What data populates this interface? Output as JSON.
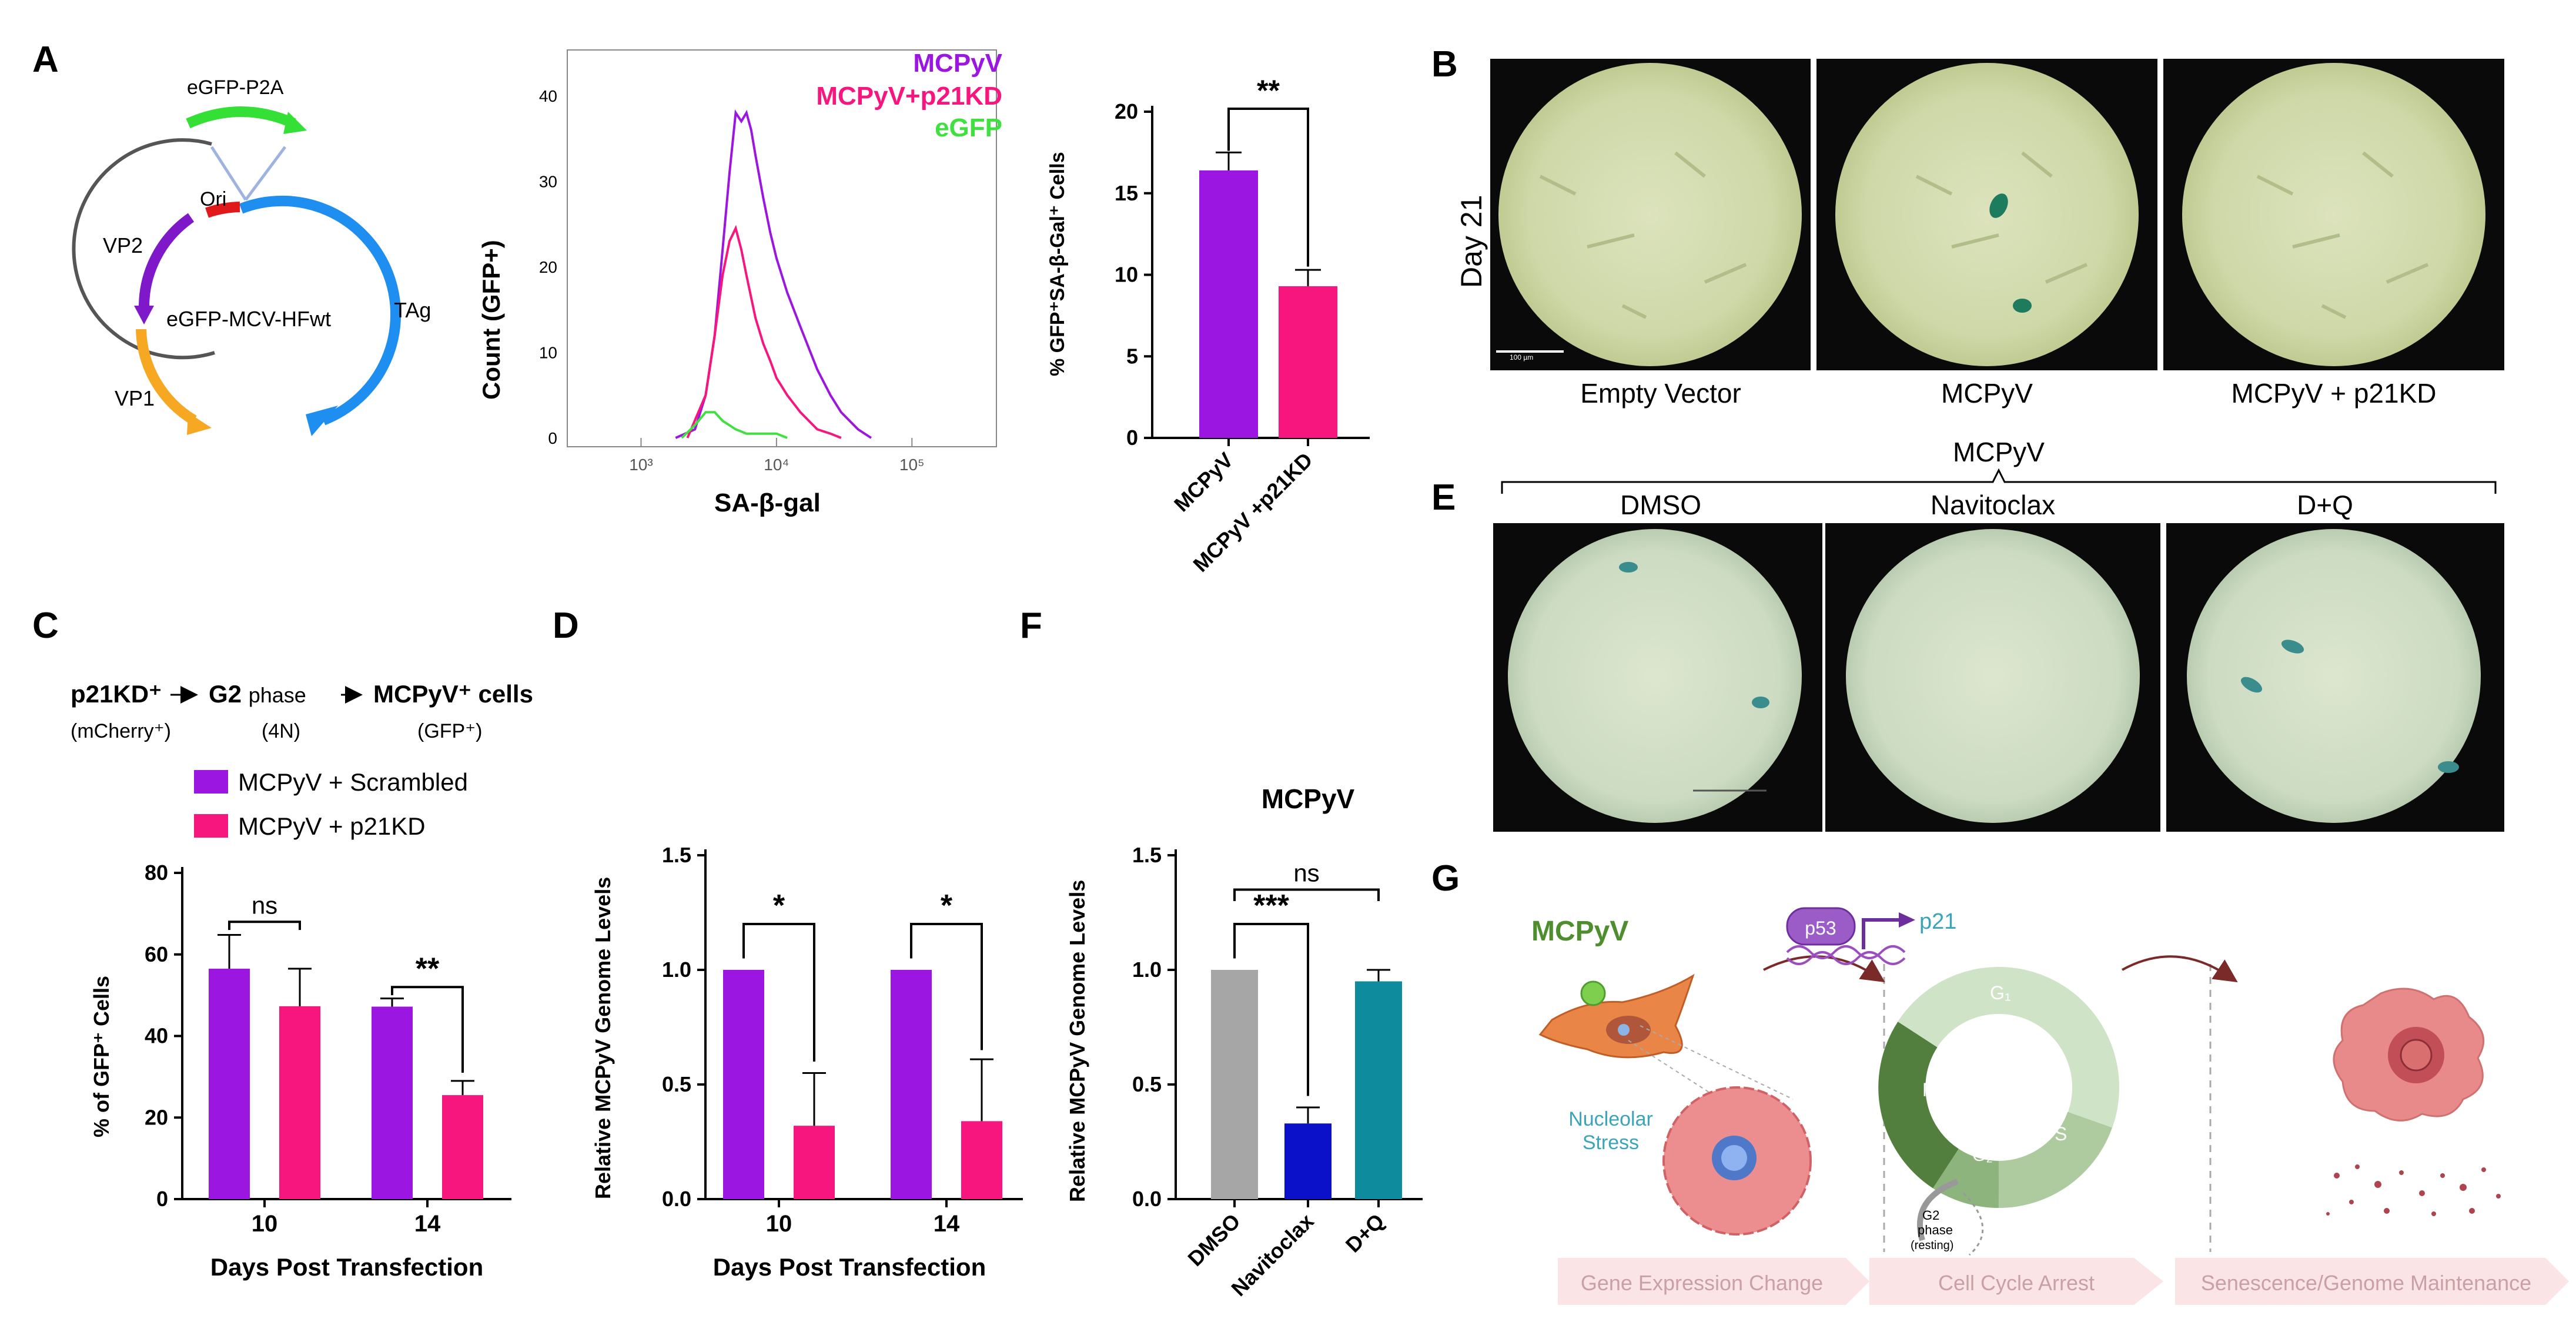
{
  "colors": {
    "purple": "#9B16E0",
    "pink": "#F7157E",
    "green": "#3FE03F",
    "gray": "#A6A6A6",
    "navy": "#0B10C9",
    "teal": "#0E8B9C",
    "plasmid_blue": "#1E8EF0",
    "plasmid_orange": "#F7A823",
    "plasmid_purple": "#7E18C9",
    "plasmid_red": "#E01A1A",
    "plasmid_green": "#34E035",
    "mcpyv_green": "#4E8E2E",
    "micro_bg": "#0A0A0A",
    "micro_field": "#D6DDB4"
  },
  "panel_letters": [
    "A",
    "B",
    "C",
    "D",
    "E",
    "F",
    "G"
  ],
  "plasmid": {
    "insert": "eGFP-P2A",
    "center": "eGFP-MCV-HFwt",
    "ori": "Ori",
    "vp2": "VP2",
    "vp1": "VP1",
    "tag": "TAg"
  },
  "histogram": {
    "chart_data": {
      "type": "line",
      "title": "",
      "xlabel": "SA-β-gal",
      "ylabel": "Count (GFP+)",
      "xscale": "log",
      "xlim": [
        300,
        400000
      ],
      "ylim": [
        0,
        45
      ],
      "xticks": [
        "10³",
        "10⁴",
        "10⁵"
      ],
      "yticks": [
        0,
        10,
        20,
        30,
        40
      ],
      "series": [
        {
          "name": "MCPyV",
          "color": "#9B16E0",
          "x": [
            1800,
            2500,
            3000,
            3500,
            4000,
            4500,
            5000,
            5500,
            6000,
            6500,
            7000,
            8000,
            9000,
            10000,
            12000,
            15000,
            20000,
            25000,
            30000,
            40000,
            50000
          ],
          "y": [
            0,
            1,
            5,
            12,
            22,
            31,
            38,
            37,
            38,
            36,
            33,
            28,
            24,
            21,
            17,
            13,
            8,
            5,
            3,
            1,
            0
          ]
        },
        {
          "name": "MCPyV+p21KD",
          "color": "#F7157E",
          "x": [
            2200,
            3000,
            3500,
            4000,
            4500,
            5000,
            5500,
            6000,
            7000,
            8000,
            9000,
            10000,
            12000,
            15000,
            20000,
            25000,
            30000
          ],
          "y": [
            0,
            5,
            12,
            19,
            23,
            24.5,
            22,
            19,
            14,
            11,
            9,
            7,
            5,
            3,
            1,
            0.5,
            0
          ]
        },
        {
          "name": "eGFP",
          "color": "#3FE03F",
          "x": [
            2000,
            2500,
            3000,
            3500,
            4000,
            5000,
            6000,
            8000,
            10000,
            12000
          ],
          "y": [
            0,
            1.5,
            3,
            3,
            2,
            1,
            0.5,
            0.5,
            0.5,
            0
          ]
        }
      ]
    }
  },
  "bar_a": {
    "chart_data": {
      "type": "bar",
      "categories": [
        "MCPyV",
        "MCPyV +p21KD"
      ],
      "values": [
        16.4,
        9.3
      ],
      "errors": [
        1.1,
        1.0
      ],
      "colors": [
        "#9B16E0",
        "#F7157E"
      ],
      "ylabel": "% GFP⁺SA-β-Gal⁺ Cells",
      "ylim": [
        0,
        20
      ],
      "yticks": [
        0,
        5,
        10,
        15,
        20
      ],
      "annotations": [
        {
          "label": "**",
          "between": [
            0,
            1
          ]
        }
      ]
    }
  },
  "panel_b": {
    "day_label": "Day 21",
    "scale_label": "100 µm",
    "captions": [
      "Empty Vector",
      "MCPyV",
      "MCPyV + p21KD"
    ]
  },
  "panel_e": {
    "group_label": "MCPyV",
    "captions": [
      "DMSO",
      "Navitoclax",
      "D+Q"
    ]
  },
  "panel_c": {
    "flow": {
      "step1": "p21KD⁺",
      "step2_bold": "G2",
      "step2_rest": "phase",
      "step3": "MCPyV⁺ cells",
      "sub1": "(mCherry⁺)",
      "sub2": "(4N)",
      "sub3": "(GFP⁺)"
    },
    "legend": [
      "MCPyV + Scrambled",
      "MCPyV + p21KD"
    ],
    "chart_data": {
      "type": "bar",
      "categories": [
        "10",
        "14"
      ],
      "series": [
        {
          "name": "MCPyV + Scrambled",
          "values": [
            56.5,
            47.2
          ],
          "errors": [
            8.3,
            2.0
          ],
          "color": "#9B16E0"
        },
        {
          "name": "MCPyV + p21KD",
          "values": [
            47.3,
            25.5
          ],
          "errors": [
            9.2,
            3.5
          ],
          "color": "#F7157E"
        }
      ],
      "xlabel": "Days Post Transfection",
      "ylabel": "% of GFP⁺ Cells",
      "ylim": [
        0,
        80
      ],
      "yticks": [
        0,
        20,
        40,
        60,
        80
      ],
      "annotations": [
        {
          "label": "ns",
          "group": "10"
        },
        {
          "label": "**",
          "group": "14"
        }
      ]
    }
  },
  "panel_d": {
    "chart_data": {
      "type": "bar",
      "categories": [
        "10",
        "14"
      ],
      "series": [
        {
          "name": "MCPyV + Scrambled",
          "values": [
            1.0,
            1.0
          ],
          "errors": [
            0,
            0
          ],
          "color": "#9B16E0"
        },
        {
          "name": "MCPyV + p21KD",
          "values": [
            0.32,
            0.34
          ],
          "errors": [
            0.23,
            0.27
          ],
          "color": "#F7157E"
        }
      ],
      "xlabel": "Days Post Transfection",
      "ylabel": "Relative MCPyV Genome Levels",
      "ylim": [
        0,
        1.5
      ],
      "yticks": [
        "0.0",
        "0.5",
        "1.0",
        "1.5"
      ],
      "annotations": [
        {
          "label": "*",
          "group": "10"
        },
        {
          "label": "*",
          "group": "14"
        }
      ]
    }
  },
  "panel_f": {
    "chart_data": {
      "type": "bar",
      "title": "MCPyV",
      "categories": [
        "DMSO",
        "Navitoclax",
        "D+Q"
      ],
      "values": [
        1.0,
        0.33,
        0.95
      ],
      "errors": [
        0,
        0.07,
        0.05
      ],
      "colors": [
        "#A6A6A6",
        "#0B10C9",
        "#0E8B9C"
      ],
      "ylabel": "Relative MCPyV Genome Levels",
      "ylim": [
        0,
        1.5
      ],
      "yticks": [
        "0.0",
        "0.5",
        "1.0",
        "1.5"
      ],
      "annotations": [
        {
          "label": "***",
          "between": [
            0,
            1
          ]
        },
        {
          "label": "ns",
          "between": [
            0,
            2
          ]
        }
      ]
    }
  },
  "panel_g": {
    "virus": "MCPyV",
    "p53": "p53",
    "p21": "p21",
    "nucleolar": [
      "Nucleolar",
      "Stress"
    ],
    "cycle": {
      "g1": "G₁",
      "s": "S",
      "g2": "G₂",
      "m": "M"
    },
    "resting": [
      "G2",
      "phase",
      "(resting)"
    ],
    "stages": [
      "Gene Expression Change",
      "Cell Cycle Arrest",
      "Senescence/Genome Maintenance"
    ]
  }
}
